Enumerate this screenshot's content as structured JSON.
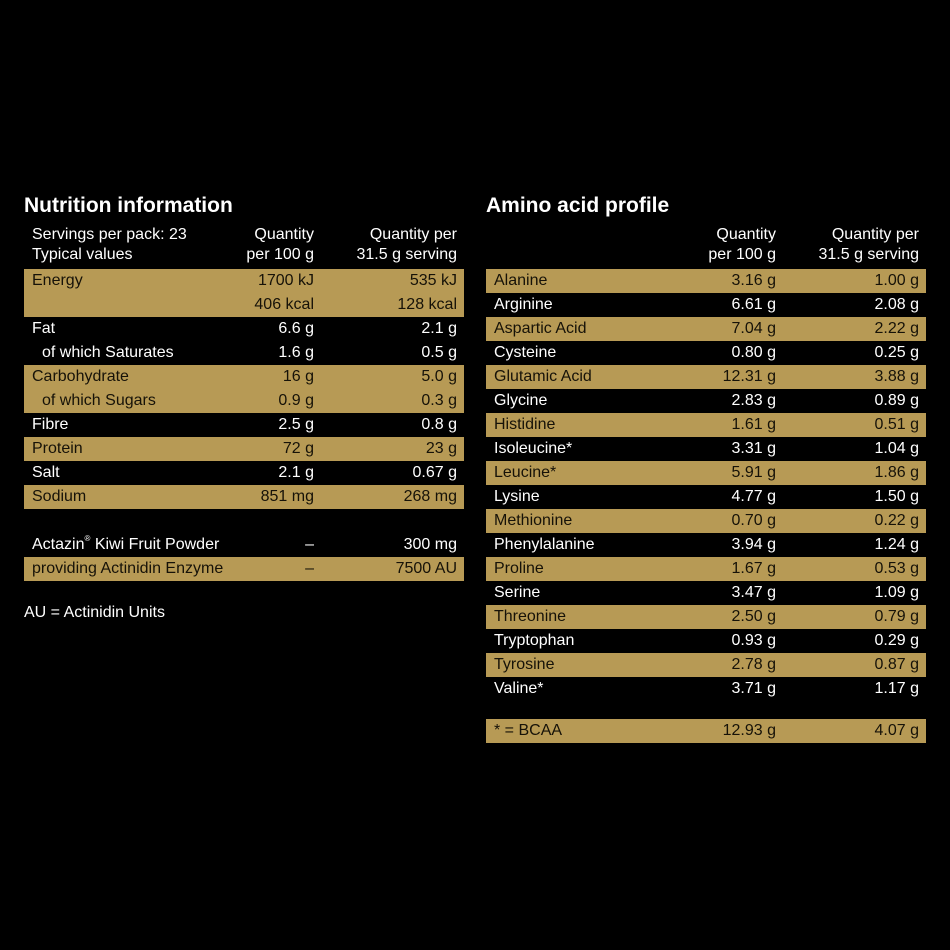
{
  "nutrition": {
    "title": "Nutrition information",
    "header": {
      "col0_line1": "Servings per pack: 23",
      "col0_line2": "Typical values",
      "col1_line1": "Quantity",
      "col1_line2": "per 100 g",
      "col2_line1": "Quantity per",
      "col2_line2": "31.5 g serving"
    },
    "rows": [
      {
        "label": "Energy",
        "per100": "1700 kJ",
        "serving": "535 kJ"
      },
      {
        "label": "",
        "per100": "406 kcal",
        "serving": "128 kcal"
      },
      {
        "label": "Fat",
        "per100": "6.6 g",
        "serving": "2.1 g"
      },
      {
        "label": "of which Saturates",
        "per100": "1.6 g",
        "serving": "0.5 g"
      },
      {
        "label": "Carbohydrate",
        "per100": "16 g",
        "serving": "5.0 g"
      },
      {
        "label": "of which Sugars",
        "per100": "0.9 g",
        "serving": "0.3 g"
      },
      {
        "label": "Fibre",
        "per100": "2.5 g",
        "serving": "0.8 g"
      },
      {
        "label": "Protein",
        "per100": "72 g",
        "serving": "23 g"
      },
      {
        "label": "Salt",
        "per100": "2.1 g",
        "serving": "0.67 g"
      },
      {
        "label": "Sodium",
        "per100": "851 mg",
        "serving": "268 mg"
      }
    ],
    "extra_rows": [
      {
        "label": "Actazin",
        "mark": "®",
        "label_rest": " Kiwi Fruit Powder",
        "per100": "–",
        "serving": "300 mg"
      },
      {
        "label": "providing Actinidin Enzyme",
        "per100": "–",
        "serving": "7500 AU"
      }
    ],
    "note": "AU = Actinidin Units"
  },
  "amino": {
    "title": "Amino acid profile",
    "header": {
      "col1_line1": "Quantity",
      "col1_line2": "per 100 g",
      "col2_line1": "Quantity per",
      "col2_line2": "31.5 g serving"
    },
    "rows": [
      {
        "label": "Alanine",
        "per100": "3.16 g",
        "serving": "1.00 g"
      },
      {
        "label": "Arginine",
        "per100": "6.61 g",
        "serving": "2.08 g"
      },
      {
        "label": "Aspartic Acid",
        "per100": "7.04 g",
        "serving": "2.22 g"
      },
      {
        "label": "Cysteine",
        "per100": "0.80 g",
        "serving": "0.25 g"
      },
      {
        "label": "Glutamic Acid",
        "per100": "12.31 g",
        "serving": "3.88 g"
      },
      {
        "label": "Glycine",
        "per100": "2.83 g",
        "serving": "0.89 g"
      },
      {
        "label": "Histidine",
        "per100": "1.61 g",
        "serving": "0.51 g"
      },
      {
        "label": "Isoleucine*",
        "per100": "3.31 g",
        "serving": "1.04 g"
      },
      {
        "label": "Leucine*",
        "per100": "5.91 g",
        "serving": "1.86 g"
      },
      {
        "label": "Lysine",
        "per100": "4.77 g",
        "serving": "1.50 g"
      },
      {
        "label": "Methionine",
        "per100": "0.70 g",
        "serving": "0.22 g"
      },
      {
        "label": "Phenylalanine",
        "per100": "3.94 g",
        "serving": "1.24 g"
      },
      {
        "label": "Proline",
        "per100": "1.67 g",
        "serving": "0.53 g"
      },
      {
        "label": "Serine",
        "per100": "3.47 g",
        "serving": "1.09 g"
      },
      {
        "label": "Threonine",
        "per100": "2.50 g",
        "serving": "0.79 g"
      },
      {
        "label": "Tryptophan",
        "per100": "0.93 g",
        "serving": "0.29 g"
      },
      {
        "label": "Tyrosine",
        "per100": "2.78 g",
        "serving": "0.87 g"
      },
      {
        "label": "Valine*",
        "per100": "3.71 g",
        "serving": "1.17 g"
      }
    ],
    "footer": {
      "label": "* = BCAA",
      "per100": "12.93 g",
      "serving": "4.07 g"
    }
  },
  "colors": {
    "background": "#000000",
    "gold": "#b79a55",
    "text_light": "#ffffff",
    "text_dark": "#161208"
  }
}
